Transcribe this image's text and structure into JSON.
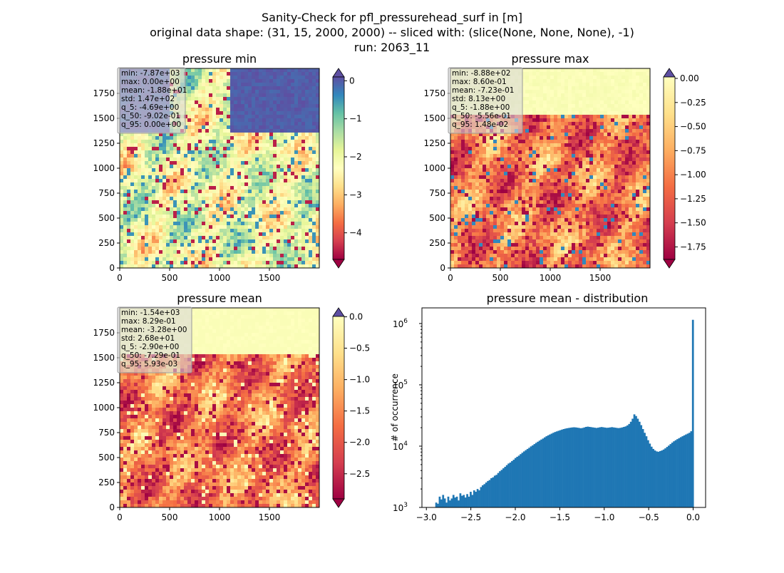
{
  "figure": {
    "title_lines": [
      "Sanity-Check for pfl_pressurehead_surf in [m]",
      "original data shape: (31, 15, 2000, 2000) -- sliced with: (slice(None, None, None), -1)",
      "run: 2063_11"
    ]
  },
  "chart_data": [
    {
      "type": "heatmap",
      "title": "pressure min",
      "xlim": [
        0,
        2000
      ],
      "ylim": [
        0,
        2000
      ],
      "xticks": [
        "0",
        "500",
        "1000",
        "1500"
      ],
      "yticks": [
        "0",
        "250",
        "500",
        "750",
        "1000",
        "1250",
        "1500",
        "1750"
      ],
      "colormap": "Spectral",
      "colorbar": {
        "range": [
          -4.7,
          0.1
        ],
        "ticks": [
          "0",
          "−1",
          "−2",
          "−3",
          "−4"
        ],
        "extend": "both"
      },
      "stats": [
        "min: -7.87e+03",
        "max: 0.00e+00",
        "mean: -1.88e+01",
        "std: 1.47e+02",
        "q_5: -4.69e+00",
        "q_50: -9.02e-01",
        "q_95: 0.00e+00"
      ]
    },
    {
      "type": "heatmap",
      "title": "pressure max",
      "xlim": [
        0,
        2000
      ],
      "ylim": [
        0,
        2000
      ],
      "xticks": [
        "0",
        "500",
        "1000",
        "1500"
      ],
      "yticks": [
        "0",
        "250",
        "500",
        "750",
        "1000",
        "1250",
        "1500",
        "1750"
      ],
      "colormap": "Spectral",
      "colorbar": {
        "range": [
          -1.88,
          0.015
        ],
        "ticks": [
          "0.00",
          "−0.25",
          "−0.50",
          "−0.75",
          "−1.00",
          "−1.25",
          "−1.50",
          "−1.75"
        ],
        "extend": "both"
      },
      "stats": [
        "min: -8.88e+02",
        "max: 8.60e-01",
        "mean: -7.23e-01",
        "std: 8.13e+00",
        "q_5: -1.88e+00",
        "q_50: -5.56e-01",
        "q_95: 1.48e-02"
      ]
    },
    {
      "type": "heatmap",
      "title": "pressure mean",
      "xlim": [
        0,
        2000
      ],
      "ylim": [
        0,
        2000
      ],
      "xticks": [
        "0",
        "500",
        "1000",
        "1500"
      ],
      "yticks": [
        "0",
        "250",
        "500",
        "750",
        "1000",
        "1250",
        "1500",
        "1750"
      ],
      "colormap": "Spectral",
      "colorbar": {
        "range": [
          -2.9,
          0.006
        ],
        "ticks": [
          "0.0",
          "−0.5",
          "−1.0",
          "−1.5",
          "−2.0",
          "−2.5"
        ],
        "extend": "both"
      },
      "stats": [
        "min: -1.54e+03",
        "max: 8.29e-01",
        "mean: -3.28e+00",
        "std: 2.68e+01",
        "q_5: -2.90e+00",
        "q_50: -7.29e-01",
        "q_95: 5.93e-03"
      ]
    },
    {
      "type": "bar",
      "title": "pressure mean - distribution",
      "ylabel": "# of occurrence",
      "yscale": "log",
      "xlim": [
        -3.05,
        0.14
      ],
      "ylim": [
        1000,
        1800000
      ],
      "xticks": [
        "−3.0",
        "−2.5",
        "−2.0",
        "−1.5",
        "−1.0",
        "−0.5",
        "0.0"
      ],
      "yticks": [
        "10^3",
        "10^4",
        "10^5",
        "10^6"
      ],
      "color": "#1f77b4",
      "bins": {
        "start": -2.9,
        "end": 0.006,
        "count": 150
      },
      "values": [
        1200,
        1150,
        1500,
        1350,
        1600,
        1400,
        1200,
        1500,
        1300,
        1400,
        1600,
        1450,
        1500,
        1300,
        1700,
        1550,
        1600,
        1450,
        1650,
        1500,
        1800,
        1600,
        1900,
        1800,
        2000,
        1900,
        2150,
        2300,
        2400,
        2550,
        2700,
        2800,
        3000,
        3100,
        3300,
        3400,
        3650,
        3900,
        4100,
        4350,
        4600,
        4900,
        5200,
        5400,
        5700,
        6000,
        6400,
        6700,
        7000,
        7400,
        7800,
        8200,
        8600,
        9000,
        9400,
        9900,
        10300,
        10800,
        11300,
        11800,
        12300,
        12800,
        13300,
        13900,
        14500,
        15000,
        15500,
        16000,
        16500,
        17000,
        17400,
        17800,
        18200,
        18600,
        19000,
        19300,
        19600,
        19800,
        20000,
        20200,
        20300,
        20200,
        20000,
        19800,
        19600,
        19800,
        20200,
        20600,
        20800,
        20600,
        20400,
        20200,
        20000,
        19800,
        20000,
        20300,
        20500,
        20300,
        20100,
        19900,
        20000,
        20200,
        20400,
        20200,
        20000,
        19800,
        19700,
        19900,
        20200,
        20600,
        21000,
        21800,
        23000,
        25000,
        28000,
        33000,
        31000,
        28000,
        25000,
        22000,
        19000,
        16500,
        14500,
        12500,
        11000,
        9800,
        9000,
        8500,
        8200,
        8100,
        8300,
        8500,
        8800,
        9200,
        9700,
        10200,
        10800,
        11400,
        12000,
        12500,
        13000,
        13500,
        14000,
        14500,
        15000,
        15500,
        16000,
        16500,
        17500,
        1150000
      ]
    }
  ]
}
